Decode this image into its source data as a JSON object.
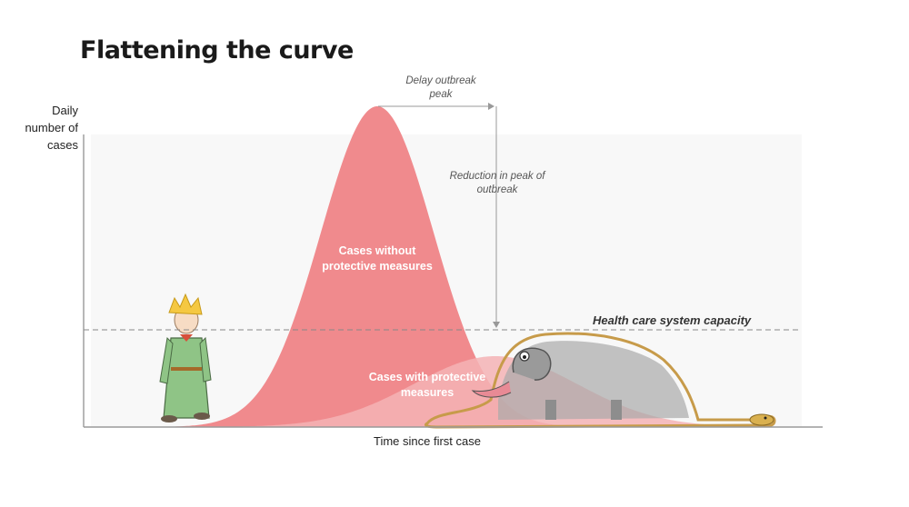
{
  "chart_data": {
    "type": "area",
    "title": "Flattening the curve",
    "xlabel": "Time since first case",
    "ylabel": "Daily\nnumber of\ncases",
    "grid": false,
    "series": [
      {
        "name": "Cases without protective measures",
        "color": "#f08a8d",
        "shape": "tall-narrow-bell"
      },
      {
        "name": "Cases with protective measures",
        "color": "#f4b3b5",
        "shape": "low-wide-bell"
      }
    ],
    "reference_lines": [
      {
        "label": "Health care system capacity",
        "style": "dashed",
        "color": "#888888"
      }
    ],
    "annotations": [
      {
        "text": "Delay outbreak\npeak",
        "type": "horizontal-arrow"
      },
      {
        "text": "Reduction in peak of\noutbreak",
        "type": "vertical-arrow"
      }
    ]
  },
  "illustrations": [
    {
      "name": "little-prince",
      "description": "figure"
    },
    {
      "name": "boa-elephant",
      "description": "figure"
    }
  ]
}
